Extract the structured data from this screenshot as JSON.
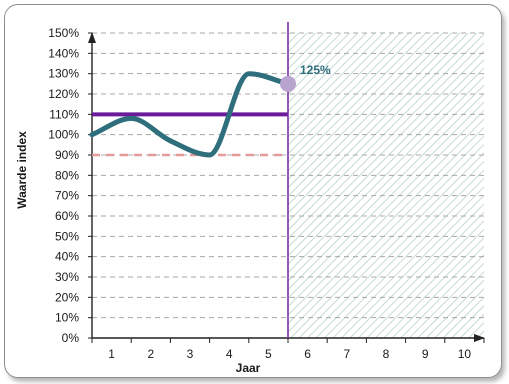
{
  "chart_data": {
    "type": "line",
    "xlabel": "Jaar",
    "ylabel": "Waarde index",
    "x_ticks": [
      "1",
      "2",
      "3",
      "4",
      "5",
      "6",
      "7",
      "8",
      "9",
      "10"
    ],
    "y_ticks": [
      "0%",
      "10%",
      "20%",
      "30%",
      "40%",
      "50%",
      "60%",
      "70%",
      "80%",
      "90%",
      "100%",
      "110%",
      "120%",
      "130%",
      "140%",
      "150%"
    ],
    "ylim": [
      0,
      150
    ],
    "xlim": [
      0.5,
      10.5
    ],
    "grid": "horizontal dashed",
    "series": [
      {
        "color": "#2e6e7d",
        "x": [
          0.5,
          1.5,
          2.5,
          3.5,
          4.5,
          5.5
        ],
        "y": [
          100,
          108,
          97,
          90,
          130,
          125
        ]
      }
    ],
    "reference_lines": [
      {
        "value": 110,
        "color": "#6a1b9a",
        "style": "solid"
      },
      {
        "value": 90,
        "color": "#e69a9a",
        "style": "dashed"
      }
    ],
    "vertical_marker": {
      "x": 5.5,
      "color": "#7b2fa7"
    },
    "forecast_region": {
      "x_from": 5.5,
      "x_to": 10.5,
      "pattern": "hatched",
      "color": "#b7cfcd"
    },
    "end_point": {
      "x": 5.5,
      "y": 125,
      "color": "#b9a3cf",
      "label": "125%"
    }
  }
}
